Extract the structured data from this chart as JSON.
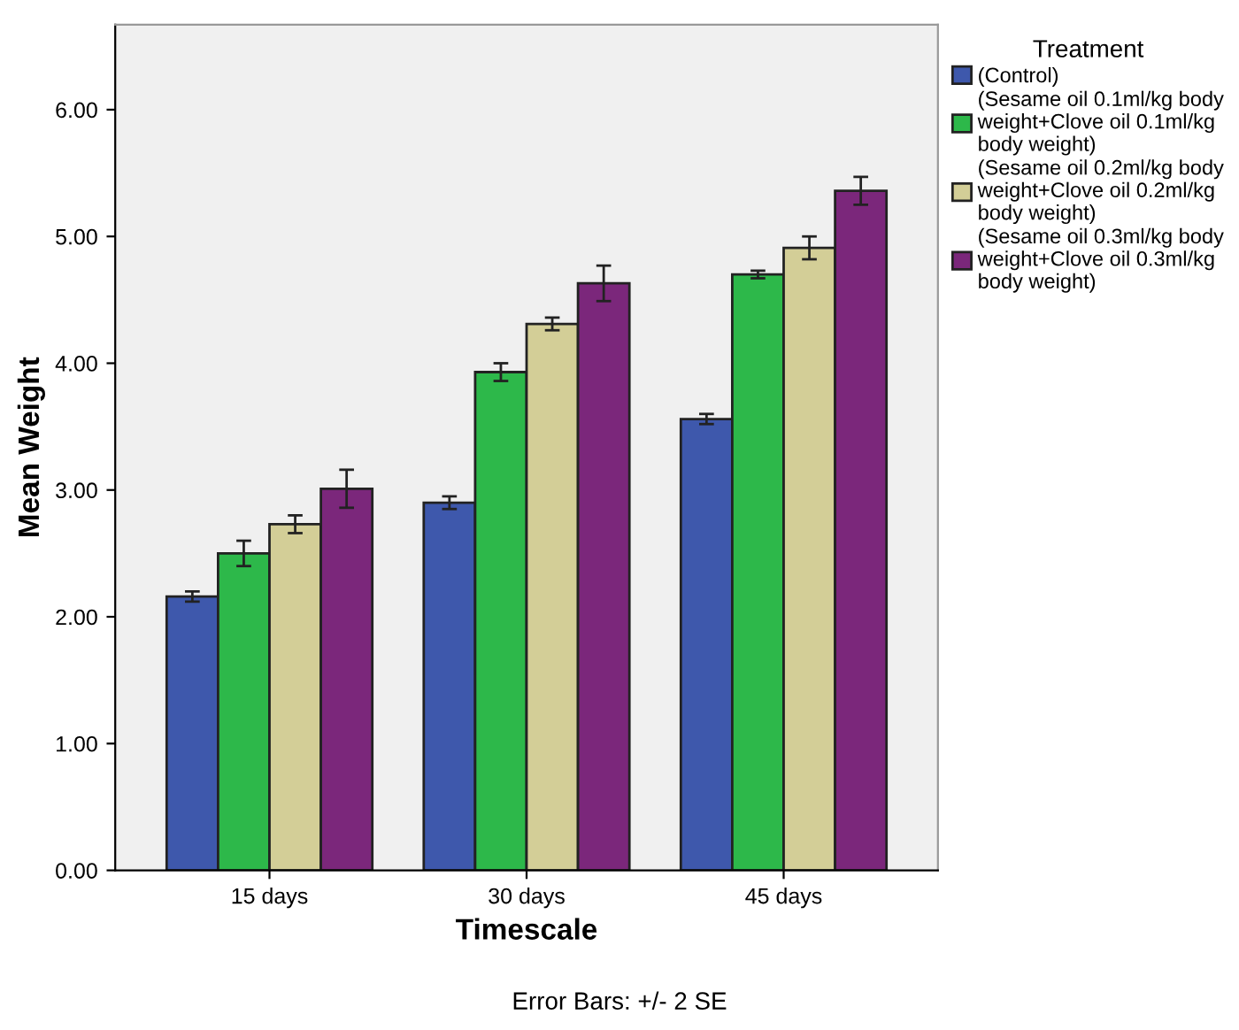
{
  "chart_data": {
    "type": "bar",
    "xlabel": "Timescale",
    "ylabel": "Mean Weight",
    "legend_title": "Treatment",
    "legend": "right",
    "categories": [
      "15 days",
      "30 days",
      "45 days"
    ],
    "series": [
      {
        "name": "(Control)",
        "color": "#3e58ac",
        "values": [
          2.16,
          2.9,
          3.56
        ],
        "errors": [
          0.04,
          0.05,
          0.04
        ]
      },
      {
        "name": "(Sesame oil 0.1ml/kg body\nweight+Clove oil 0.1ml/kg\nbody weight)",
        "color": "#2db84a",
        "values": [
          2.5,
          3.93,
          4.7
        ],
        "errors": [
          0.1,
          0.07,
          0.03
        ]
      },
      {
        "name": "(Sesame oil 0.2ml/kg body\nweight+Clove oil 0.2ml/kg\nbody weight)",
        "color": "#d3ce97",
        "values": [
          2.73,
          4.31,
          4.91
        ],
        "errors": [
          0.07,
          0.05,
          0.09
        ]
      },
      {
        "name": "(Sesame oil 0.3ml/kg body\nweight+Clove oil 0.3ml/kg\nbody weight)",
        "color": "#7b277b",
        "values": [
          3.01,
          4.63,
          5.36
        ],
        "errors": [
          0.15,
          0.14,
          0.11
        ]
      }
    ],
    "ylim": [
      0,
      6.67
    ],
    "yticks": [
      {
        "value": 0,
        "label": "0.00"
      },
      {
        "value": 1,
        "label": "1.00"
      },
      {
        "value": 2,
        "label": "2.00"
      },
      {
        "value": 3,
        "label": "3.00"
      },
      {
        "value": 4,
        "label": "4.00"
      },
      {
        "value": 5,
        "label": "5.00"
      },
      {
        "value": 6,
        "label": "6.00"
      }
    ],
    "grid": false,
    "annotations": [
      "Error Bars: +/- 2 SE"
    ]
  }
}
